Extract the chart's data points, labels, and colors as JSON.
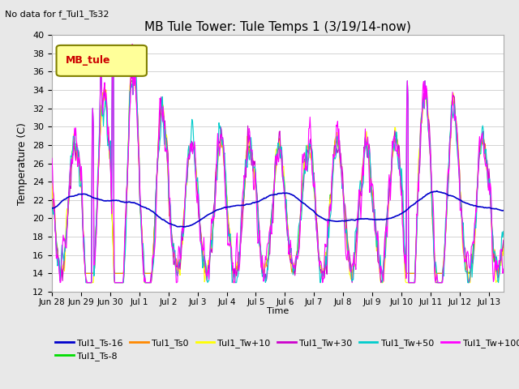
{
  "title": "MB Tule Tower: Tule Temps 1 (3/19/14-now)",
  "no_data_text": "No data for f_Tul1_Ts32",
  "ylabel": "Temperature (C)",
  "xlabel": "Time",
  "ylim": [
    12,
    40
  ],
  "yticks": [
    12,
    14,
    16,
    18,
    20,
    22,
    24,
    26,
    28,
    30,
    32,
    34,
    36,
    38,
    40
  ],
  "background_color": "#e8e8e8",
  "plot_bg_color": "#ffffff",
  "legend_box_color": "#ffff99",
  "legend_box_edge": "#808000",
  "series_colors": {
    "Tul1_Ts-16": "#0000cc",
    "Tul1_Ts-8": "#00dd00",
    "Tul1_Ts0": "#ff8800",
    "Tul1_Tw+10": "#ffff00",
    "Tul1_Tw+30": "#cc00cc",
    "Tul1_Tw+50": "#00cccc",
    "Tul1_Tw+100": "#ff00ff"
  },
  "x_tick_labels": [
    "Jun 28",
    "Jun 29",
    "Jun 30",
    "Jul 1",
    "Jul 2",
    "Jul 3",
    "Jul 4",
    "Jul 5",
    "Jul 6",
    "Jul 7",
    "Jul 8",
    "Jul 9",
    "Jul 10",
    "Jul 11",
    "Jul 12",
    "Jul 13"
  ],
  "n_points": 720,
  "time_days": 15.5
}
